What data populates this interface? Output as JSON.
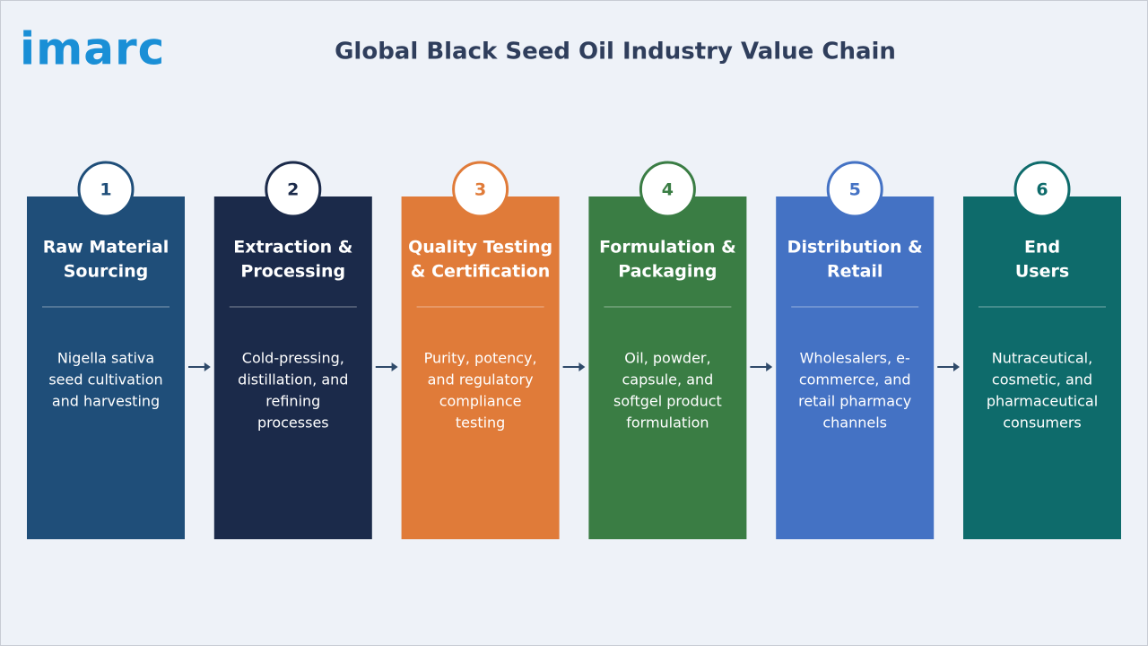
{
  "header": {
    "logo": "imarc",
    "title": "Global Black Seed Oil Industry Value Chain"
  },
  "steps": [
    {
      "number": 1,
      "color": "#1f4e79",
      "title": [
        "Raw Material",
        "Sourcing"
      ],
      "description": [
        "Nigella sativa",
        "seed cultivation",
        "and harvesting"
      ]
    },
    {
      "number": 2,
      "color": "#1b2a4a",
      "title": [
        "Extraction &",
        "Processing"
      ],
      "description": [
        "Cold-pressing,",
        "distillation, and",
        "refining",
        "processes"
      ]
    },
    {
      "number": 3,
      "color": "#e07b39",
      "title": [
        "Quality Testing",
        "& Certification"
      ],
      "description": [
        "Purity, potency,",
        "and regulatory",
        "compliance",
        "testing"
      ]
    },
    {
      "number": 4,
      "color": "#3a7d44",
      "title": [
        "Formulation &",
        "Packaging"
      ],
      "description": [
        "Oil, powder,",
        "capsule, and",
        "softgel product",
        "formulation"
      ]
    },
    {
      "number": 5,
      "color": "#4472c4",
      "title": [
        "Distribution &",
        "Retail"
      ],
      "description": [
        "Wholesalers, e-",
        "commerce, and",
        "retail pharmacy",
        "channels"
      ]
    },
    {
      "number": 6,
      "color": "#0e6b6b",
      "title": [
        "End",
        "Users"
      ],
      "description": [
        "Nutraceutical,",
        "cosmetic, and",
        "pharmaceutical",
        "consumers"
      ]
    }
  ]
}
